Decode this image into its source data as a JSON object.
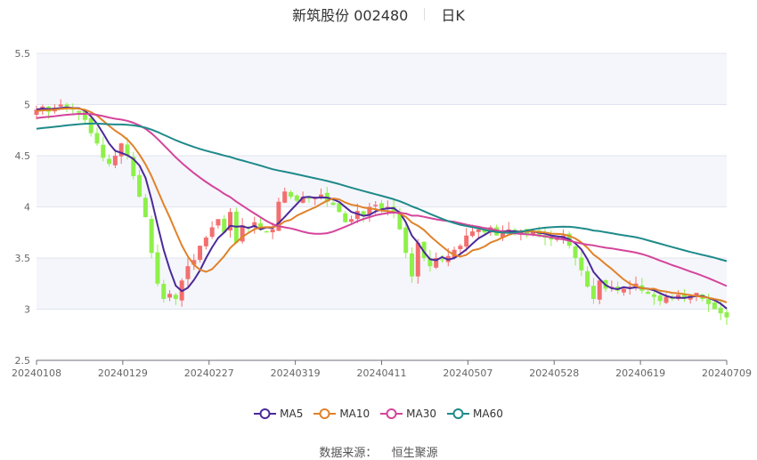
{
  "title": {
    "stock_name_code": "新筑股份 002480",
    "period": "日K"
  },
  "legend": [
    {
      "name": "MA5",
      "color": "#4b2a9a"
    },
    {
      "name": "MA10",
      "color": "#e0822a"
    },
    {
      "name": "MA30",
      "color": "#d4449b"
    },
    {
      "name": "MA60",
      "color": "#1f8a8a"
    }
  ],
  "source": {
    "label": "数据来源：",
    "value": "恒生聚源"
  },
  "colors": {
    "up": "#f36f6f",
    "down": "#8ef04a",
    "band": "#f5f6fb",
    "grid": "#e0e4ef"
  },
  "chart_data": {
    "type": "candlestick",
    "title": "新筑股份 002480 日K",
    "xlabel": "",
    "ylabel": "",
    "ylim": [
      2.5,
      5.5
    ],
    "yticks": [
      2.5,
      3,
      3.5,
      4,
      4.5,
      5,
      5.5
    ],
    "xtick_labels": [
      "20240108",
      "20240129",
      "20240227",
      "20240319",
      "20240411",
      "20240507",
      "20240528",
      "20240619",
      "20240709"
    ],
    "legend_position": "bottom",
    "series_names": [
      "K",
      "MA5",
      "MA10",
      "MA30",
      "MA60"
    ],
    "candles_close": [
      4.95,
      4.98,
      4.93,
      4.97,
      5.0,
      4.98,
      4.95,
      4.92,
      4.85,
      4.72,
      4.62,
      4.48,
      4.42,
      4.5,
      4.62,
      4.5,
      4.3,
      4.1,
      3.9,
      3.55,
      3.25,
      3.1,
      3.15,
      3.1,
      3.28,
      3.42,
      3.48,
      3.62,
      3.7,
      3.8,
      3.88,
      3.75,
      3.95,
      3.65,
      3.82,
      3.8,
      3.85,
      3.78,
      3.75,
      3.78,
      4.05,
      4.15,
      4.1,
      4.06,
      4.1,
      4.08,
      4.1,
      4.12,
      4.05,
      4.02,
      3.95,
      3.85,
      3.88,
      3.96,
      3.92,
      4.0,
      4.02,
      3.98,
      4.0,
      3.94,
      3.78,
      3.55,
      3.32,
      3.65,
      3.5,
      3.42,
      3.5,
      3.48,
      3.52,
      3.58,
      3.62,
      3.72,
      3.76,
      3.78,
      3.75,
      3.8,
      3.72,
      3.76,
      3.78,
      3.75,
      3.77,
      3.74,
      3.76,
      3.72,
      3.7,
      3.68,
      3.7,
      3.72,
      3.62,
      3.5,
      3.38,
      3.22,
      3.1,
      3.28,
      3.2,
      3.22,
      3.18,
      3.2,
      3.22,
      3.25,
      3.18,
      3.15,
      3.12,
      3.08,
      3.12,
      3.1,
      3.14,
      3.11,
      3.13,
      3.16,
      3.1,
      3.05,
      3.0,
      2.96,
      2.92
    ],
    "ma5_end": 3.05,
    "ma10_end": 3.08,
    "ma30_end": 3.22,
    "ma60_end": 3.45
  }
}
